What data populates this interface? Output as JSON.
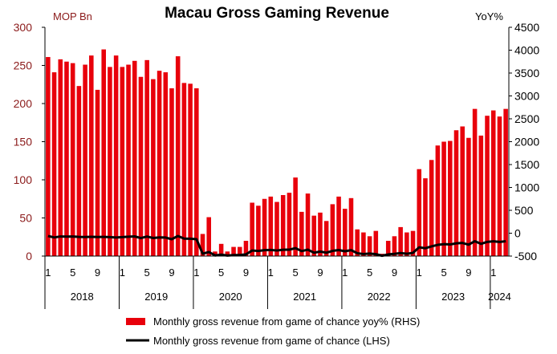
{
  "chart_data": {
    "type": "bar",
    "title": "Macau Gross Gaming Revenue",
    "left_axis_unit": "MOP Bn",
    "right_axis_unit": "YoY%",
    "colors": {
      "bar": "#e8000b",
      "line": "#000000",
      "left_axis_text": "#8b1a1a"
    },
    "y_left": {
      "min": 0,
      "max": 300,
      "ticks": [
        "0",
        "50",
        "100",
        "150",
        "200",
        "250",
        "300"
      ]
    },
    "y_right": {
      "min": -500,
      "max": 4500,
      "ticks": [
        "-500",
        "0",
        "500",
        "1000",
        "1500",
        "2000",
        "2500",
        "3000",
        "3500",
        "4000",
        "4500"
      ]
    },
    "x_month_ticks": [
      "1",
      "5",
      "9",
      "1",
      "5",
      "9",
      "1",
      "5",
      "9",
      "1",
      "5",
      "9",
      "1",
      "5",
      "9",
      "1",
      "5",
      "9",
      "1"
    ],
    "years": [
      "2018",
      "2019",
      "2020",
      "2021",
      "2022",
      "2023",
      "2024"
    ],
    "grid": false,
    "legend_position": "bottom",
    "series": [
      {
        "name": "Monthly gross revenue from game of chance yoy% (RHS)",
        "kind": "bar",
        "axis": "left",
        "values": [
          261,
          241,
          258,
          255,
          253,
          223,
          251,
          263,
          218,
          271,
          248,
          263,
          248,
          251,
          256,
          235,
          257,
          232,
          243,
          241,
          220,
          262,
          227,
          226,
          220,
          29,
          51,
          6,
          16,
          6,
          12,
          12,
          20,
          70,
          66,
          75,
          78,
          71,
          80,
          83,
          103,
          58,
          82,
          53,
          57,
          46,
          68,
          78,
          62,
          76,
          35,
          31,
          26,
          33,
          3,
          20,
          26,
          38,
          31,
          33,
          114,
          102,
          126,
          145,
          150,
          151,
          165,
          170,
          155,
          193,
          158,
          184,
          191,
          183,
          193
        ]
      },
      {
        "name": "Monthly gross revenue from game of chance (LHS)",
        "kind": "line",
        "axis": "left",
        "values": [
          26.3,
          24.4,
          25.7,
          25.5,
          25.6,
          25.1,
          25.0,
          25.3,
          25.0,
          25.1,
          24.9,
          24.4,
          24.9,
          25.4,
          25.8,
          23.6,
          25.6,
          23.7,
          24.5,
          24.3,
          22.1,
          26.3,
          22.9,
          22.8,
          22.1,
          3.1,
          5.3,
          0.8,
          1.8,
          0.7,
          1.3,
          1.3,
          2.2,
          7.3,
          6.7,
          7.8,
          8.0,
          7.3,
          8.3,
          8.4,
          10.4,
          6.5,
          8.4,
          4.4,
          5.9,
          4.4,
          6.8,
          7.9,
          6.3,
          7.8,
          3.7,
          2.7,
          3.3,
          2.5,
          0.4,
          2.2,
          2.9,
          3.9,
          3.0,
          4.2,
          11.5,
          10.3,
          12.7,
          14.7,
          15.6,
          15.2,
          16.7,
          17.2,
          14.9,
          19.5,
          16.0,
          18.6,
          19.3,
          18.5,
          19.5
        ]
      }
    ]
  }
}
